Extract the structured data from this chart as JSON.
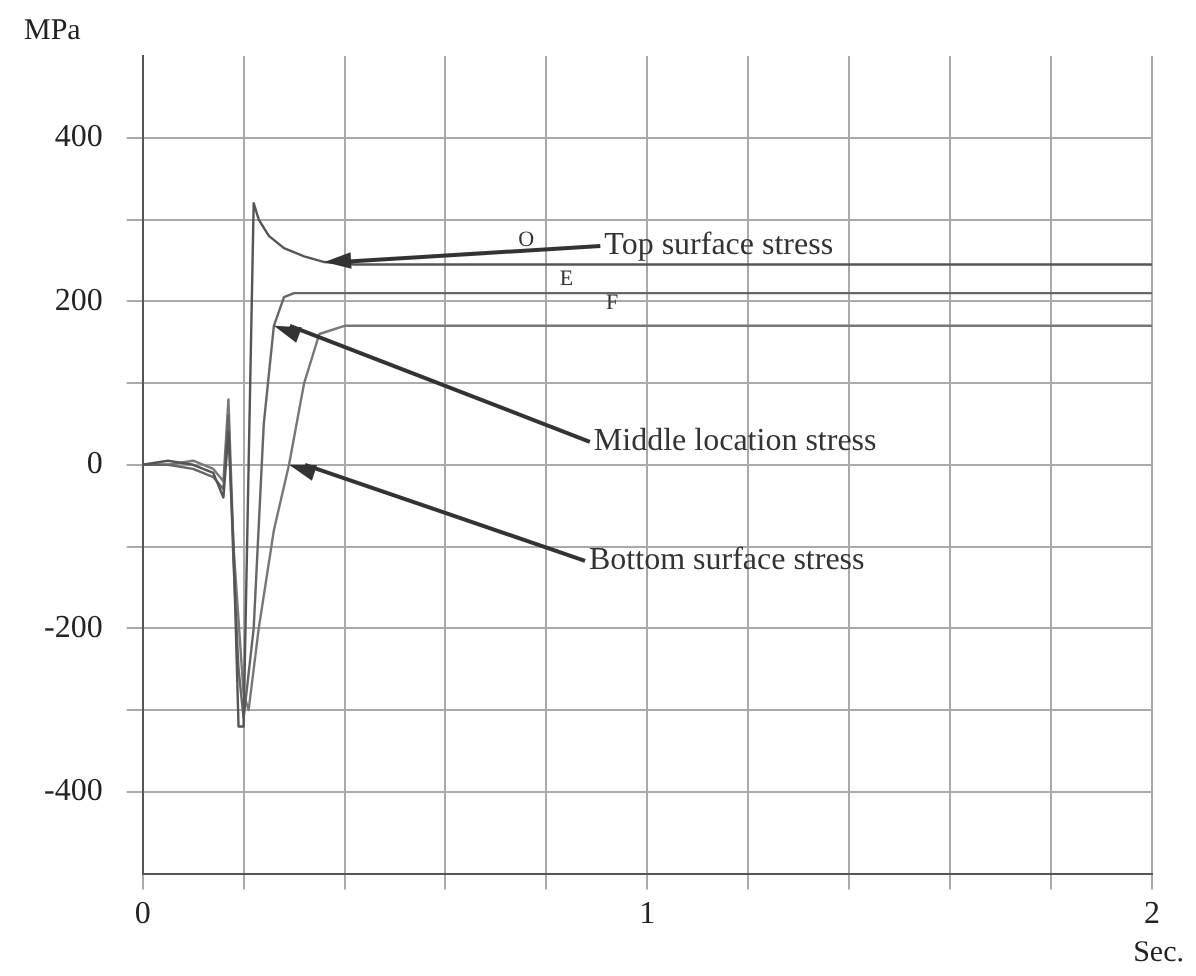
{
  "chart_data": {
    "type": "line",
    "xlabel": "Sec.",
    "ylabel": "MPa",
    "xlim": [
      0,
      2
    ],
    "ylim": [
      -500,
      500
    ],
    "xticks": [
      0,
      {
        "value": 0.2,
        "label": null
      },
      {
        "value": 0.4,
        "label": null
      },
      {
        "value": 0.6,
        "label": null
      },
      {
        "value": 0.8,
        "label": null
      },
      1,
      {
        "value": 1.2,
        "label": null
      },
      {
        "value": 1.4,
        "label": null
      },
      {
        "value": 1.6,
        "label": null
      },
      {
        "value": 1.8,
        "label": null
      },
      2
    ],
    "yticks": [
      -400,
      {
        "value": -300,
        "label": null
      },
      -200,
      {
        "value": -100,
        "label": null
      },
      0,
      {
        "value": 100,
        "label": null
      },
      200,
      {
        "value": 300,
        "label": null
      },
      400
    ],
    "grid": true,
    "legend": false,
    "marker": "none",
    "line_style": "solid",
    "series": [
      {
        "color": "#555555",
        "x": [
          0,
          0.05,
          0.1,
          0.14,
          0.16,
          0.17,
          0.18,
          0.19,
          0.2,
          0.21,
          0.22,
          0.23,
          0.25,
          0.28,
          0.32,
          0.36,
          0.42,
          0.5,
          0.7,
          1,
          1.5,
          2
        ],
        "values": [
          0,
          5,
          0,
          -10,
          -40,
          40,
          -100,
          -320,
          -320,
          0,
          320,
          300,
          280,
          265,
          255,
          248,
          245,
          245,
          245,
          245,
          245,
          245
        ]
      },
      {
        "color": "#666666",
        "x": [
          0,
          0.05,
          0.1,
          0.14,
          0.16,
          0.17,
          0.18,
          0.19,
          0.2,
          0.22,
          0.24,
          0.26,
          0.28,
          0.3,
          0.35,
          0.5,
          1,
          1.5,
          2
        ],
        "values": [
          0,
          0,
          -5,
          -15,
          -30,
          60,
          -120,
          -250,
          -310,
          -200,
          50,
          170,
          205,
          210,
          210,
          210,
          210,
          210,
          210
        ]
      },
      {
        "color": "#777777",
        "x": [
          0,
          0.05,
          0.1,
          0.14,
          0.16,
          0.17,
          0.18,
          0.2,
          0.21,
          0.23,
          0.26,
          0.29,
          0.32,
          0.35,
          0.4,
          0.6,
          1,
          1.5,
          2
        ],
        "values": [
          0,
          0,
          5,
          -5,
          -20,
          80,
          -100,
          -280,
          -300,
          -200,
          -80,
          0,
          100,
          160,
          170,
          170,
          170,
          170,
          170
        ]
      }
    ],
    "annotations": [
      {
        "text": "Top surface stress",
        "x": 0.36,
        "y": 248
      },
      {
        "text": "Middle location stress",
        "x": 0.26,
        "y": 170
      },
      {
        "text": "Bottom surface stress",
        "x": 0.29,
        "y": 0
      },
      "O",
      "E",
      "F"
    ]
  }
}
